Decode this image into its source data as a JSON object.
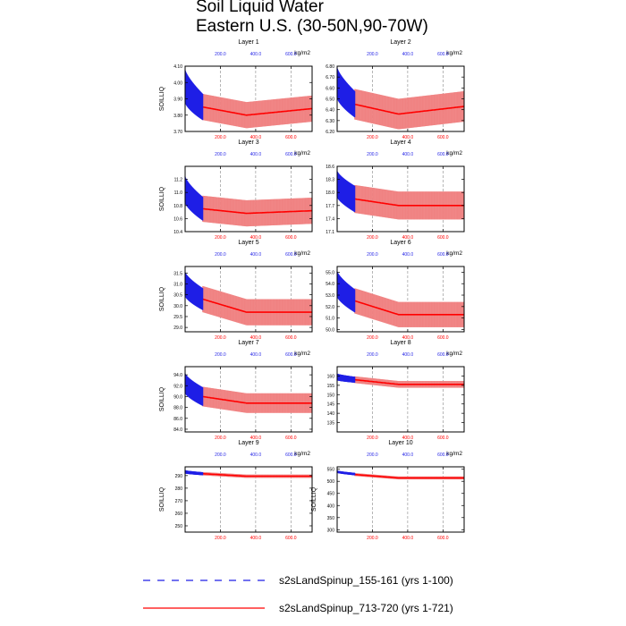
{
  "figure": {
    "title_line1": "Soil Liquid Water",
    "title_line2": "Eastern U.S. (30-50N,90-70W)"
  },
  "colors": {
    "series_a": "#1f1fe6",
    "series_b": "#ff0000",
    "series_b_light": "#f08080"
  },
  "chart_data": [
    {
      "type": "line",
      "title": "Layer 1",
      "ylabel": "SOILLIQ",
      "unit": "kg/m2",
      "ylim": [
        3.7,
        4.1
      ],
      "yticks": [
        3.7,
        3.8,
        3.9,
        4.0,
        4.1
      ],
      "ytick_labels": [
        "3.70",
        "3.80",
        "3.90",
        "4.00",
        "4.10"
      ],
      "xlim": [
        0,
        720
      ],
      "xticks_top": [
        200,
        400,
        600
      ],
      "xticks_bottom": [
        200,
        400,
        600
      ],
      "xtick_labels": [
        "200.0",
        "400.0",
        "600.0"
      ],
      "grid": "x-dashed",
      "series": [
        {
          "name": "s2sLandSpinup_155-161 (yrs 1-100)",
          "x_end": 100,
          "mean_start": 3.98,
          "mean_end": 3.85,
          "amp_start": 0.1,
          "amp_end": 0.08
        },
        {
          "name": "s2sLandSpinup_713-720 (yrs 1-721)",
          "x_start": 100,
          "x_end": 720,
          "mean_start": 3.85,
          "mean_min": 3.8,
          "mean_end": 3.84,
          "amp": 0.08
        }
      ]
    },
    {
      "type": "line",
      "title": "Layer 2",
      "ylabel": "",
      "unit": "kg/m2",
      "ylim": [
        6.2,
        6.8
      ],
      "yticks": [
        6.2,
        6.3,
        6.4,
        6.5,
        6.6,
        6.7,
        6.8
      ],
      "ytick_labels": [
        "6.20",
        "6.30",
        "6.40",
        "6.50",
        "6.60",
        "6.70",
        "6.80"
      ],
      "xlim": [
        0,
        720
      ],
      "xticks_top": [
        200,
        400,
        600
      ],
      "xticks_bottom": [
        200,
        400,
        600
      ],
      "xtick_labels": [
        "200.0",
        "400.0",
        "600.0"
      ],
      "grid": "x-dashed",
      "series": [
        {
          "name": "s2sLandSpinup_155-161 (yrs 1-100)",
          "x_end": 100,
          "mean_start": 6.65,
          "mean_end": 6.45,
          "amp_start": 0.14,
          "amp_end": 0.12
        },
        {
          "name": "s2sLandSpinup_713-720 (yrs 1-721)",
          "x_start": 100,
          "x_end": 720,
          "mean_start": 6.45,
          "mean_min": 6.36,
          "mean_end": 6.43,
          "amp": 0.14
        }
      ]
    },
    {
      "type": "line",
      "title": "Layer 3",
      "ylabel": "SOILLIQ",
      "unit": "kg/m2",
      "ylim": [
        10.4,
        11.4
      ],
      "yticks": [
        10.4,
        10.6,
        10.8,
        11.0,
        11.2
      ],
      "ytick_labels": [
        "10.4",
        "10.6",
        "10.8",
        "11.0",
        "11.2"
      ],
      "xlim": [
        0,
        720
      ],
      "xticks_top": [
        200,
        400,
        600
      ],
      "xticks_bottom": [
        200,
        400,
        600
      ],
      "xtick_labels": [
        "200.0",
        "400.0",
        "600.0"
      ],
      "grid": "x-dashed",
      "series": [
        {
          "name": "s2sLandSpinup_155-161 (yrs 1-100)",
          "x_end": 100,
          "mean_start": 11.05,
          "mean_end": 10.75,
          "amp_start": 0.2,
          "amp_end": 0.18
        },
        {
          "name": "s2sLandSpinup_713-720 (yrs 1-721)",
          "x_start": 100,
          "x_end": 720,
          "mean_start": 10.75,
          "mean_min": 10.68,
          "mean_end": 10.72,
          "amp": 0.2
        }
      ]
    },
    {
      "type": "line",
      "title": "Layer 4",
      "ylabel": "",
      "unit": "kg/m2",
      "ylim": [
        17.1,
        18.6
      ],
      "yticks": [
        17.1,
        17.4,
        17.7,
        18.0,
        18.3,
        18.6
      ],
      "ytick_labels": [
        "17.1",
        "17.4",
        "17.7",
        "18.0",
        "18.3",
        "18.6"
      ],
      "xlim": [
        0,
        720
      ],
      "xticks_top": [
        200,
        400,
        600
      ],
      "xticks_bottom": [
        200,
        400,
        600
      ],
      "xtick_labels": [
        "200.0",
        "400.0",
        "600.0"
      ],
      "grid": "x-dashed",
      "series": [
        {
          "name": "s2sLandSpinup_155-161 (yrs 1-100)",
          "x_end": 100,
          "mean_start": 18.2,
          "mean_end": 17.85,
          "amp_start": 0.3,
          "amp_end": 0.3
        },
        {
          "name": "s2sLandSpinup_713-720 (yrs 1-721)",
          "x_start": 100,
          "x_end": 720,
          "mean_start": 17.85,
          "mean_min": 17.7,
          "mean_end": 17.7,
          "amp": 0.32
        }
      ]
    },
    {
      "type": "line",
      "title": "Layer 5",
      "ylabel": "SOILLIQ",
      "unit": "kg/m2",
      "ylim": [
        28.8,
        31.8
      ],
      "yticks": [
        29.0,
        29.5,
        30.0,
        30.5,
        31.0,
        31.5
      ],
      "ytick_labels": [
        "29.0",
        "29.5",
        "30.0",
        "30.5",
        "31.0",
        "31.5"
      ],
      "xlim": [
        0,
        720
      ],
      "xticks_top": [
        200,
        400,
        600
      ],
      "xticks_bottom": [
        200,
        400,
        600
      ],
      "xtick_labels": [
        "200.0",
        "400.0",
        "600.0"
      ],
      "grid": "x-dashed",
      "series": [
        {
          "name": "s2sLandSpinup_155-161 (yrs 1-100)",
          "x_end": 100,
          "mean_start": 31.0,
          "mean_end": 30.3,
          "amp_start": 0.55,
          "amp_end": 0.5
        },
        {
          "name": "s2sLandSpinup_713-720 (yrs 1-721)",
          "x_start": 100,
          "x_end": 720,
          "mean_start": 30.3,
          "mean_min": 29.7,
          "mean_end": 29.7,
          "amp": 0.6
        }
      ]
    },
    {
      "type": "line",
      "title": "Layer 6",
      "ylabel": "",
      "unit": "kg/m2",
      "ylim": [
        49.8,
        55.5
      ],
      "yticks": [
        50.0,
        51.0,
        52.0,
        53.0,
        54.0,
        55.0
      ],
      "ytick_labels": [
        "50.0",
        "51.0",
        "52.0",
        "53.0",
        "54.0",
        "55.0"
      ],
      "xlim": [
        0,
        720
      ],
      "xticks_top": [
        200,
        400,
        600
      ],
      "xticks_bottom": [
        200,
        400,
        600
      ],
      "xtick_labels": [
        "200.0",
        "400.0",
        "600.0"
      ],
      "grid": "x-dashed",
      "series": [
        {
          "name": "s2sLandSpinup_155-161 (yrs 1-100)",
          "x_end": 100,
          "mean_start": 54.0,
          "mean_end": 52.5,
          "amp_start": 1.1,
          "amp_end": 1.0
        },
        {
          "name": "s2sLandSpinup_713-720 (yrs 1-721)",
          "x_start": 100,
          "x_end": 720,
          "mean_start": 52.5,
          "mean_min": 51.3,
          "mean_end": 51.3,
          "amp": 1.1
        }
      ]
    },
    {
      "type": "line",
      "title": "Layer 7",
      "ylabel": "SOILLIQ",
      "unit": "kg/m2",
      "ylim": [
        83.5,
        95.5
      ],
      "yticks": [
        84.0,
        86.0,
        88.0,
        90.0,
        92.0,
        94.0
      ],
      "ytick_labels": [
        "84.0",
        "86.0",
        "88.0",
        "90.0",
        "92.0",
        "94.0"
      ],
      "xlim": [
        0,
        720
      ],
      "xticks_top": [
        200,
        400,
        600
      ],
      "xticks_bottom": [
        200,
        400,
        600
      ],
      "xtick_labels": [
        "200.0",
        "400.0",
        "600.0"
      ],
      "grid": "x-dashed",
      "series": [
        {
          "name": "s2sLandSpinup_155-161 (yrs 1-100)",
          "x_end": 100,
          "mean_start": 92.5,
          "mean_end": 90.0,
          "amp_start": 1.8,
          "amp_end": 1.7
        },
        {
          "name": "s2sLandSpinup_713-720 (yrs 1-721)",
          "x_start": 100,
          "x_end": 720,
          "mean_start": 90.0,
          "mean_min": 88.8,
          "mean_end": 88.8,
          "amp": 1.8
        }
      ]
    },
    {
      "type": "line",
      "title": "Layer 8",
      "ylabel": "",
      "unit": "kg/m2",
      "ylim": [
        130,
        165
      ],
      "yticks": [
        135,
        140,
        145,
        150,
        155,
        160
      ],
      "ytick_labels": [
        "135",
        "140",
        "145",
        "150",
        "155",
        "160"
      ],
      "xlim": [
        0,
        720
      ],
      "xticks_top": [
        200,
        400,
        600
      ],
      "xticks_bottom": [
        200,
        400,
        600
      ],
      "xtick_labels": [
        "200.0",
        "400.0",
        "600.0"
      ],
      "grid": "x-dashed",
      "series": [
        {
          "name": "s2sLandSpinup_155-161 (yrs 1-100)",
          "x_end": 100,
          "mean_start": 159.5,
          "mean_end": 158.0,
          "amp_start": 1.8,
          "amp_end": 1.6
        },
        {
          "name": "s2sLandSpinup_713-720 (yrs 1-721)",
          "x_start": 100,
          "x_end": 720,
          "mean_start": 158.0,
          "mean_min": 155.5,
          "mean_end": 155.5,
          "amp": 1.8
        }
      ]
    },
    {
      "type": "line",
      "title": "Layer 9",
      "ylabel": "SOILLIQ",
      "unit": "kg/m2",
      "ylim": [
        245,
        297
      ],
      "yticks": [
        250,
        260,
        270,
        280,
        290
      ],
      "ytick_labels": [
        "250",
        "260",
        "270",
        "280",
        "290"
      ],
      "xlim": [
        0,
        720
      ],
      "xticks_top": [
        200,
        400,
        600
      ],
      "xticks_bottom": [
        200,
        400,
        600
      ],
      "xtick_labels": [
        "200.0",
        "400.0",
        "600.0"
      ],
      "grid": "x-dashed",
      "series": [
        {
          "name": "s2sLandSpinup_155-161 (yrs 1-100)",
          "x_end": 100,
          "mean_start": 293.0,
          "mean_end": 291.5,
          "amp_start": 1.3,
          "amp_end": 1.2
        },
        {
          "name": "s2sLandSpinup_713-720 (yrs 1-721)",
          "x_start": 100,
          "x_end": 720,
          "mean_start": 291.5,
          "mean_min": 289.5,
          "mean_end": 289.5,
          "amp": 1.3
        }
      ]
    },
    {
      "type": "line",
      "title": "Layer 10",
      "ylabel": "SOILLIQ",
      "unit": "kg/m2",
      "ylim": [
        290,
        560
      ],
      "yticks": [
        300,
        350,
        400,
        450,
        500,
        550
      ],
      "ytick_labels": [
        "300",
        "350",
        "400",
        "450",
        "500",
        "550"
      ],
      "xlim": [
        0,
        720
      ],
      "xticks_top": [
        200,
        400,
        600
      ],
      "xticks_bottom": [
        200,
        400,
        600
      ],
      "xtick_labels": [
        "200.0",
        "400.0",
        "600.0"
      ],
      "grid": "x-dashed",
      "series": [
        {
          "name": "s2sLandSpinup_155-161 (yrs 1-100)",
          "x_end": 100,
          "mean_start": 540,
          "mean_end": 530,
          "amp_start": 5,
          "amp_end": 5
        },
        {
          "name": "s2sLandSpinup_713-720 (yrs 1-721)",
          "x_start": 100,
          "x_end": 720,
          "mean_start": 528,
          "mean_min": 514,
          "mean_end": 514,
          "amp": 6
        }
      ]
    }
  ],
  "legend": {
    "items": [
      {
        "label": "s2sLandSpinup_155-161 (yrs 1-100)",
        "style": "dashed",
        "color": "#1f1fe6"
      },
      {
        "label": "s2sLandSpinup_713-720 (yrs 1-721)",
        "style": "solid",
        "color": "#ff0000"
      }
    ]
  }
}
